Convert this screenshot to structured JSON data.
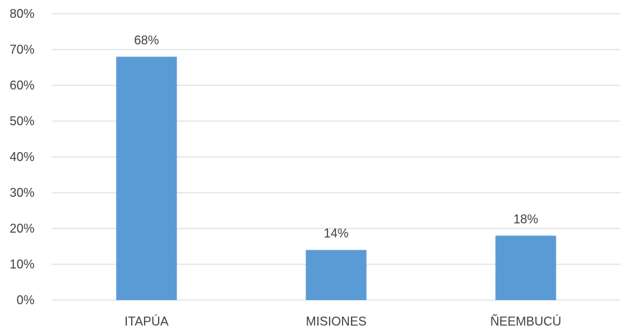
{
  "chart_data": {
    "type": "bar",
    "categories": [
      "ITAPÚA",
      "MISIONES",
      "ÑEEMBUCÚ"
    ],
    "values": [
      68,
      14,
      18
    ],
    "data_labels": [
      "68%",
      "14%",
      "18%"
    ],
    "ylim": [
      0,
      80
    ],
    "yticks": [
      0,
      10,
      20,
      30,
      40,
      50,
      60,
      70,
      80
    ],
    "ytick_labels": [
      "0%",
      "10%",
      "20%",
      "30%",
      "40%",
      "50%",
      "60%",
      "70%",
      "80%"
    ],
    "grid": true,
    "bar_color": "#5B9BD5",
    "grid_color": "#D9D9D9",
    "text_color": "#404040"
  }
}
